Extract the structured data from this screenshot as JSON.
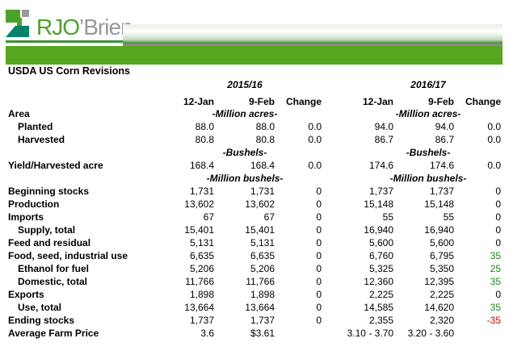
{
  "brand": {
    "name": "RJO'Brien",
    "accent": "#56a61f"
  },
  "title": "USDA US Corn Revisions",
  "years": [
    "2015/16",
    "2016/17"
  ],
  "col_headers": [
    "12-Jan",
    "9-Feb",
    "Change",
    "12-Jan",
    "9-Feb",
    "Change"
  ],
  "colors": {
    "positive": "#1a8a1a",
    "negative": "#e00000"
  },
  "rows": [
    {
      "label": "Area",
      "indent": false,
      "unit": [
        "-Million acres-",
        "-Million acres-"
      ]
    },
    {
      "label": "Planted",
      "indent": true,
      "values": [
        "88.0",
        "88.0",
        "0.0",
        "94.0",
        "94.0",
        "0.0"
      ]
    },
    {
      "label": "Harvested",
      "indent": true,
      "values": [
        "80.8",
        "80.8",
        "0.0",
        "86.7",
        "86.7",
        "0.0"
      ]
    },
    {
      "label": "",
      "indent": false,
      "unit": [
        "-Bushels-",
        "-Bushels-"
      ]
    },
    {
      "label": "Yield/Harvested acre",
      "indent": false,
      "values": [
        "168.4",
        "168.4",
        "0.0",
        "174.6",
        "174.6",
        "0.0"
      ]
    },
    {
      "label": "",
      "indent": false,
      "unit": [
        "-Million bushels-",
        "-Million bushels-"
      ]
    },
    {
      "label": "Beginning stocks",
      "indent": false,
      "values": [
        "1,731",
        "1,731",
        "0",
        "1,737",
        "1,737",
        "0"
      ]
    },
    {
      "label": "Production",
      "indent": false,
      "values": [
        "13,602",
        "13,602",
        "0",
        "15,148",
        "15,148",
        "0"
      ]
    },
    {
      "label": "Imports",
      "indent": false,
      "values": [
        "67",
        "67",
        "0",
        "55",
        "55",
        "0"
      ]
    },
    {
      "label": "Supply, total",
      "indent": true,
      "values": [
        "15,401",
        "15,401",
        "0",
        "16,940",
        "16,940",
        "0"
      ]
    },
    {
      "label": "Feed and residual",
      "indent": false,
      "values": [
        "5,131",
        "5,131",
        "0",
        "5,600",
        "5,600",
        "0"
      ]
    },
    {
      "label": "Food, seed, industrial use",
      "indent": false,
      "values": [
        "6,635",
        "6,635",
        "0",
        "6,760",
        "6,795",
        "35"
      ]
    },
    {
      "label": "Ethanol for fuel",
      "indent": true,
      "values": [
        "5,206",
        "5,206",
        "0",
        "5,325",
        "5,350",
        "25"
      ]
    },
    {
      "label": "Domestic, total",
      "indent": true,
      "values": [
        "11,766",
        "11,766",
        "0",
        "12,360",
        "12,395",
        "35"
      ]
    },
    {
      "label": "Exports",
      "indent": false,
      "values": [
        "1,898",
        "1,898",
        "0",
        "2,225",
        "2,225",
        "0"
      ]
    },
    {
      "label": "Use, total",
      "indent": true,
      "values": [
        "13,664",
        "13,664",
        "0",
        "14,585",
        "14,620",
        "35"
      ]
    },
    {
      "label": "Ending stocks",
      "indent": false,
      "values": [
        "1,737",
        "1,737",
        "0",
        "2,355",
        "2,320",
        "-35"
      ]
    },
    {
      "label": "Average Farm Price",
      "indent": false,
      "values": [
        "3.6",
        "$3.61",
        "",
        "3.10 - 3.70",
        "3.20 - 3.60",
        ""
      ]
    }
  ]
}
